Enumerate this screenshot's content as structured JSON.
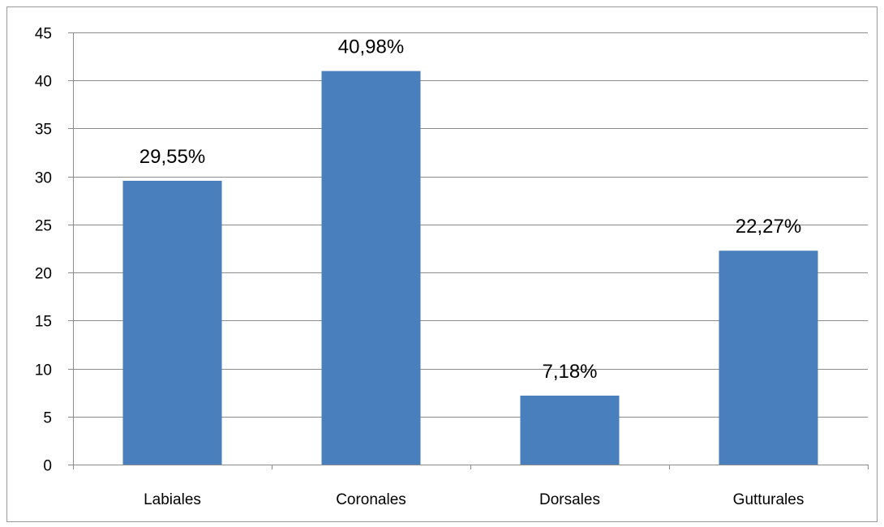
{
  "chart_data": {
    "type": "bar",
    "title": "",
    "xlabel": "",
    "ylabel": "",
    "categories": [
      "Labiales",
      "Coronales",
      "Dorsales",
      "Gutturales"
    ],
    "values": [
      29.55,
      40.98,
      7.18,
      22.27
    ],
    "data_labels": [
      "29,55%",
      "40,98%",
      "7,18%",
      "22,27%"
    ],
    "ylim": [
      0,
      45
    ],
    "yticks": [
      0,
      5,
      10,
      15,
      20,
      25,
      30,
      35,
      40,
      45
    ],
    "ytick_labels": [
      "0",
      "5",
      "10",
      "15",
      "20",
      "25",
      "30",
      "35",
      "40",
      "45"
    ],
    "grid": true,
    "legend": "none",
    "bar_color": "#4a7fbd",
    "grid_color": "#8c8c8c"
  }
}
